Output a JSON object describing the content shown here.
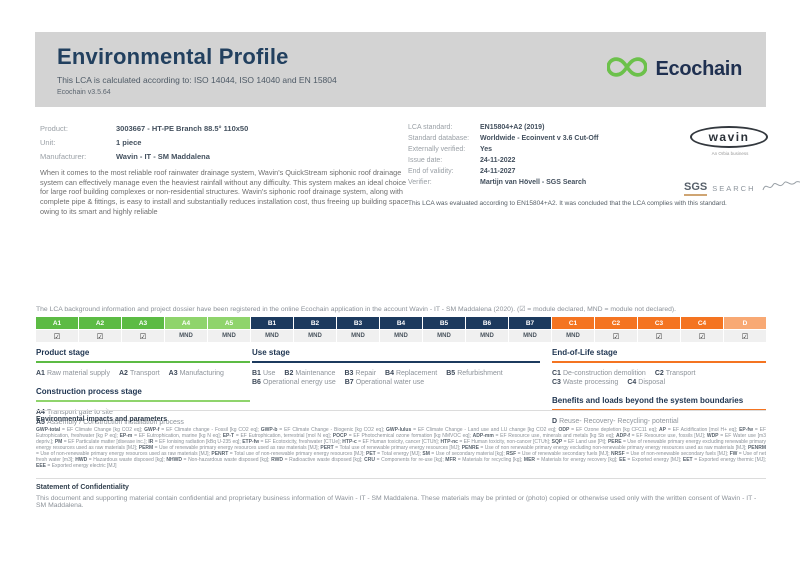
{
  "header": {
    "title": "Environmental Profile",
    "subtitle": "This LCA is calculated according to: ISO 14044, ISO 14040 and EN 15804",
    "version": "Ecochain v3.5.64",
    "logo_text": "Ecochain"
  },
  "colors": {
    "product_stage": "#5cbb44",
    "construction_stage": "#8fd46c",
    "use_stage": "#1c3a5e",
    "eol_stage": "#f47421",
    "benefits_stage": "#f8a974",
    "ecochain_green": "#6cc14b",
    "navy_text": "#22405f"
  },
  "product_info": {
    "rows": [
      {
        "label": "Product:",
        "value": "3003667 - HT-PE Branch 88.5° 110x50"
      },
      {
        "label": "Unit:",
        "value": "1 piece"
      },
      {
        "label": "Manufacturer:",
        "value": "Wavin - IT - SM Maddalena"
      }
    ],
    "description": "When it comes to the most reliable roof rainwater drainage system, Wavin's QuickStream siphonic roof drainage system can effectively manage even the heaviest rainfall without any difficulty. This system makes an ideal choice for large roof building complexes or non-residential structures. Wavin's siphonic roof drainage system, along with complete pipe & fittings, is easy to install and substantially reduces installation cost, thus freeing up building space owing to its smart and highly reliable"
  },
  "lca_info": {
    "rows": [
      {
        "label": "LCA standard:",
        "value": "EN15804+A2 (2019)"
      },
      {
        "label": "Standard database:",
        "value": "Worldwide - Ecoinvent v 3.6 Cut-Off"
      },
      {
        "label": "Externally verified:",
        "value": "Yes"
      },
      {
        "label": "Issue date:",
        "value": "24-11-2022"
      },
      {
        "label": "End of validity:",
        "value": "24-11-2027"
      },
      {
        "label": "Verifier:",
        "value": "Martijn van Hövell - SGS Search"
      }
    ],
    "evaluation_note": "This LCA was evaluated according to EN15804+A2. It was concluded that the LCA complies with this standard."
  },
  "logos": {
    "wavin_name": "wavin",
    "wavin_tagline": "An Orbia business",
    "sgs_name": "SGS",
    "sgs_search": "SEARCH"
  },
  "registration_note": "The LCA background information and project dossier have been registered in the online Ecochain application in the account Wavin - IT - SM Maddalena (2020). (☑ = module declared, MND = module not declared).",
  "module_table": {
    "columns": [
      {
        "code": "A1",
        "status": "☑",
        "group": "product_stage"
      },
      {
        "code": "A2",
        "status": "☑",
        "group": "product_stage"
      },
      {
        "code": "A3",
        "status": "☑",
        "group": "product_stage"
      },
      {
        "code": "A4",
        "status": "MND",
        "group": "construction_stage"
      },
      {
        "code": "A5",
        "status": "MND",
        "group": "construction_stage"
      },
      {
        "code": "B1",
        "status": "MND",
        "group": "use_stage"
      },
      {
        "code": "B2",
        "status": "MND",
        "group": "use_stage"
      },
      {
        "code": "B3",
        "status": "MND",
        "group": "use_stage"
      },
      {
        "code": "B4",
        "status": "MND",
        "group": "use_stage"
      },
      {
        "code": "B5",
        "status": "MND",
        "group": "use_stage"
      },
      {
        "code": "B6",
        "status": "MND",
        "group": "use_stage"
      },
      {
        "code": "B7",
        "status": "MND",
        "group": "use_stage"
      },
      {
        "code": "C1",
        "status": "MND",
        "group": "eol_stage"
      },
      {
        "code": "C2",
        "status": "☑",
        "group": "eol_stage"
      },
      {
        "code": "C3",
        "status": "☑",
        "group": "eol_stage"
      },
      {
        "code": "C4",
        "status": "☑",
        "group": "eol_stage"
      },
      {
        "code": "D",
        "status": "☑",
        "group": "benefits_stage"
      }
    ]
  },
  "stages": {
    "columns": [
      {
        "blocks": [
          {
            "heading": "Product stage",
            "group": "product_stage",
            "stacked": false,
            "items": [
              {
                "c": "A1",
                "l": "Raw material supply"
              },
              {
                "c": "A2",
                "l": "Transport"
              },
              {
                "c": "A3",
                "l": "Manufacturing"
              }
            ]
          },
          {
            "heading": "Construction process stage",
            "group": "construction_stage",
            "stacked": true,
            "items": [
              {
                "c": "A4",
                "l": "Transport gate to site"
              },
              {
                "c": "A5",
                "l": "Assembly / Construction installation process"
              }
            ]
          }
        ]
      },
      {
        "blocks": [
          {
            "heading": "Use stage",
            "group": "use_stage",
            "stacked": false,
            "items": [
              {
                "c": "B1",
                "l": "Use"
              },
              {
                "c": "B2",
                "l": "Maintenance"
              },
              {
                "c": "B3",
                "l": "Repair"
              },
              {
                "c": "B4",
                "l": "Replacement"
              },
              {
                "c": "B5",
                "l": "Refurbishment"
              },
              {
                "c": "B6",
                "l": "Operational energy use"
              },
              {
                "c": "B7",
                "l": "Operational water use"
              }
            ]
          }
        ]
      },
      {
        "blocks": [
          {
            "heading": "End-of-Life stage",
            "group": "eol_stage",
            "stacked": false,
            "items": [
              {
                "c": "C1",
                "l": "De-construction demolition"
              },
              {
                "c": "C2",
                "l": "Transport"
              },
              {
                "c": "C3",
                "l": "Waste processing"
              },
              {
                "c": "C4",
                "l": "Disposal"
              }
            ]
          },
          {
            "heading": "Benefits and loads beyond the system boundaries",
            "group": "eol_stage",
            "stacked": false,
            "items": [
              {
                "c": "D",
                "l": "Reuse- Recovery- Recycling- potential"
              }
            ]
          }
        ]
      }
    ]
  },
  "impacts": {
    "heading": "Environmental impacts and parameters",
    "definitions": [
      {
        "t": "GWP-total",
        "d": "EF Climate Change [kg CO2 eq]"
      },
      {
        "t": "GWP-f",
        "d": "EF Climate change - Fossil [kg CO2 eq]"
      },
      {
        "t": "GWP-b",
        "d": "EF Climate Change - Biogenic [kg CO2 eq]"
      },
      {
        "t": "GWP-lulus",
        "d": "EF Climate Change - Land use and LU change [kg CO2 eq]"
      },
      {
        "t": "ODP",
        "d": "EF Ozone depletion [kg CFC11 eq]"
      },
      {
        "t": "AP",
        "d": "EF Acidification [mol H+ eq]"
      },
      {
        "t": "EP-fw",
        "d": "EF Eutrophication, freshwater [kg P eq]"
      },
      {
        "t": "EP-m",
        "d": "EF Eutrophication, marine [kg N eq]"
      },
      {
        "t": "EP-T",
        "d": "EF Eutrophication, terrestrial [mol N eq]"
      },
      {
        "t": "POCP",
        "d": "EF Photochemical ozone formation [kg NMVOC eq]"
      },
      {
        "t": "ADP-mm",
        "d": "EF Resource use, minerals and metals [kg Sb eq]"
      },
      {
        "t": "ADP-f",
        "d": "EF Resource use, fossils [MJ]"
      },
      {
        "t": "WDP",
        "d": "EF Water use [m3 depriv.]"
      },
      {
        "t": "PM",
        "d": "EF Particulate matter [disease inc.]"
      },
      {
        "t": "IR",
        "d": "EF Ionising radiation [kBq U-235 eq]"
      },
      {
        "t": "ETP-fw",
        "d": "EF Ecotoxicity, freshwater [CTUe]"
      },
      {
        "t": "HTP-c",
        "d": "EF Human toxicity, cancer [CTUh]"
      },
      {
        "t": "HTP-nc",
        "d": "EF Human toxicity, non-cancer [CTUh]"
      },
      {
        "t": "SQP",
        "d": "EF Land use [Pt]"
      },
      {
        "t": "PERE",
        "d": "Use of renewable primary energy excluding renewable primary energy resources used as raw materials [MJ]"
      },
      {
        "t": "PERM",
        "d": "Use of renewable primary energy resources used as raw materials [MJ]"
      },
      {
        "t": "PERT",
        "d": "Total use of renewable primary energy resources [MJ]"
      },
      {
        "t": "PENRE",
        "d": "Use of non renewable primary energy excluding non-renewable primary energy resources used as raw materials [MJ]"
      },
      {
        "t": "PENRM",
        "d": "Use of non-renewable primary energy resources used as raw materials [MJ]"
      },
      {
        "t": "PENRT",
        "d": "Total use of non-renewable primary energy resources [MJ]"
      },
      {
        "t": "PET",
        "d": "Total energy [MJ]"
      },
      {
        "t": "SM",
        "d": "Use of secondary material [kg]"
      },
      {
        "t": "RSF",
        "d": "Use of renewable secondary fuels [MJ]"
      },
      {
        "t": "NRSF",
        "d": "Use of non-renewable secondary fuels [MJ]"
      },
      {
        "t": "FW",
        "d": "Use of net fresh water [m3]"
      },
      {
        "t": "HWD",
        "d": "Hazardous waste disposed [kg]"
      },
      {
        "t": "NHWD",
        "d": "Non-hazardous waste disposed [kg]"
      },
      {
        "t": "RWD",
        "d": "Radioactive waste disposed [kg]"
      },
      {
        "t": "CRU",
        "d": "Components for re-use [kg]"
      },
      {
        "t": "MFR",
        "d": "Materials for recycling [kg]"
      },
      {
        "t": "MER",
        "d": "Materials for energy recovery [kg]"
      },
      {
        "t": "EE",
        "d": "Exported energy [MJ]"
      },
      {
        "t": "EET",
        "d": "Exported energy thermic [MJ]"
      },
      {
        "t": "EEE",
        "d": "Exported energy electric [MJ]"
      }
    ]
  },
  "confidentiality": {
    "heading": "Statement of Confidentiality",
    "text": "This document and supporting material contain confidential and proprietary business information of Wavin - IT - SM Maddalena. These materials may be printed or (photo) copied or otherwise used only with the written consent of Wavin - IT - SM Maddalena."
  }
}
